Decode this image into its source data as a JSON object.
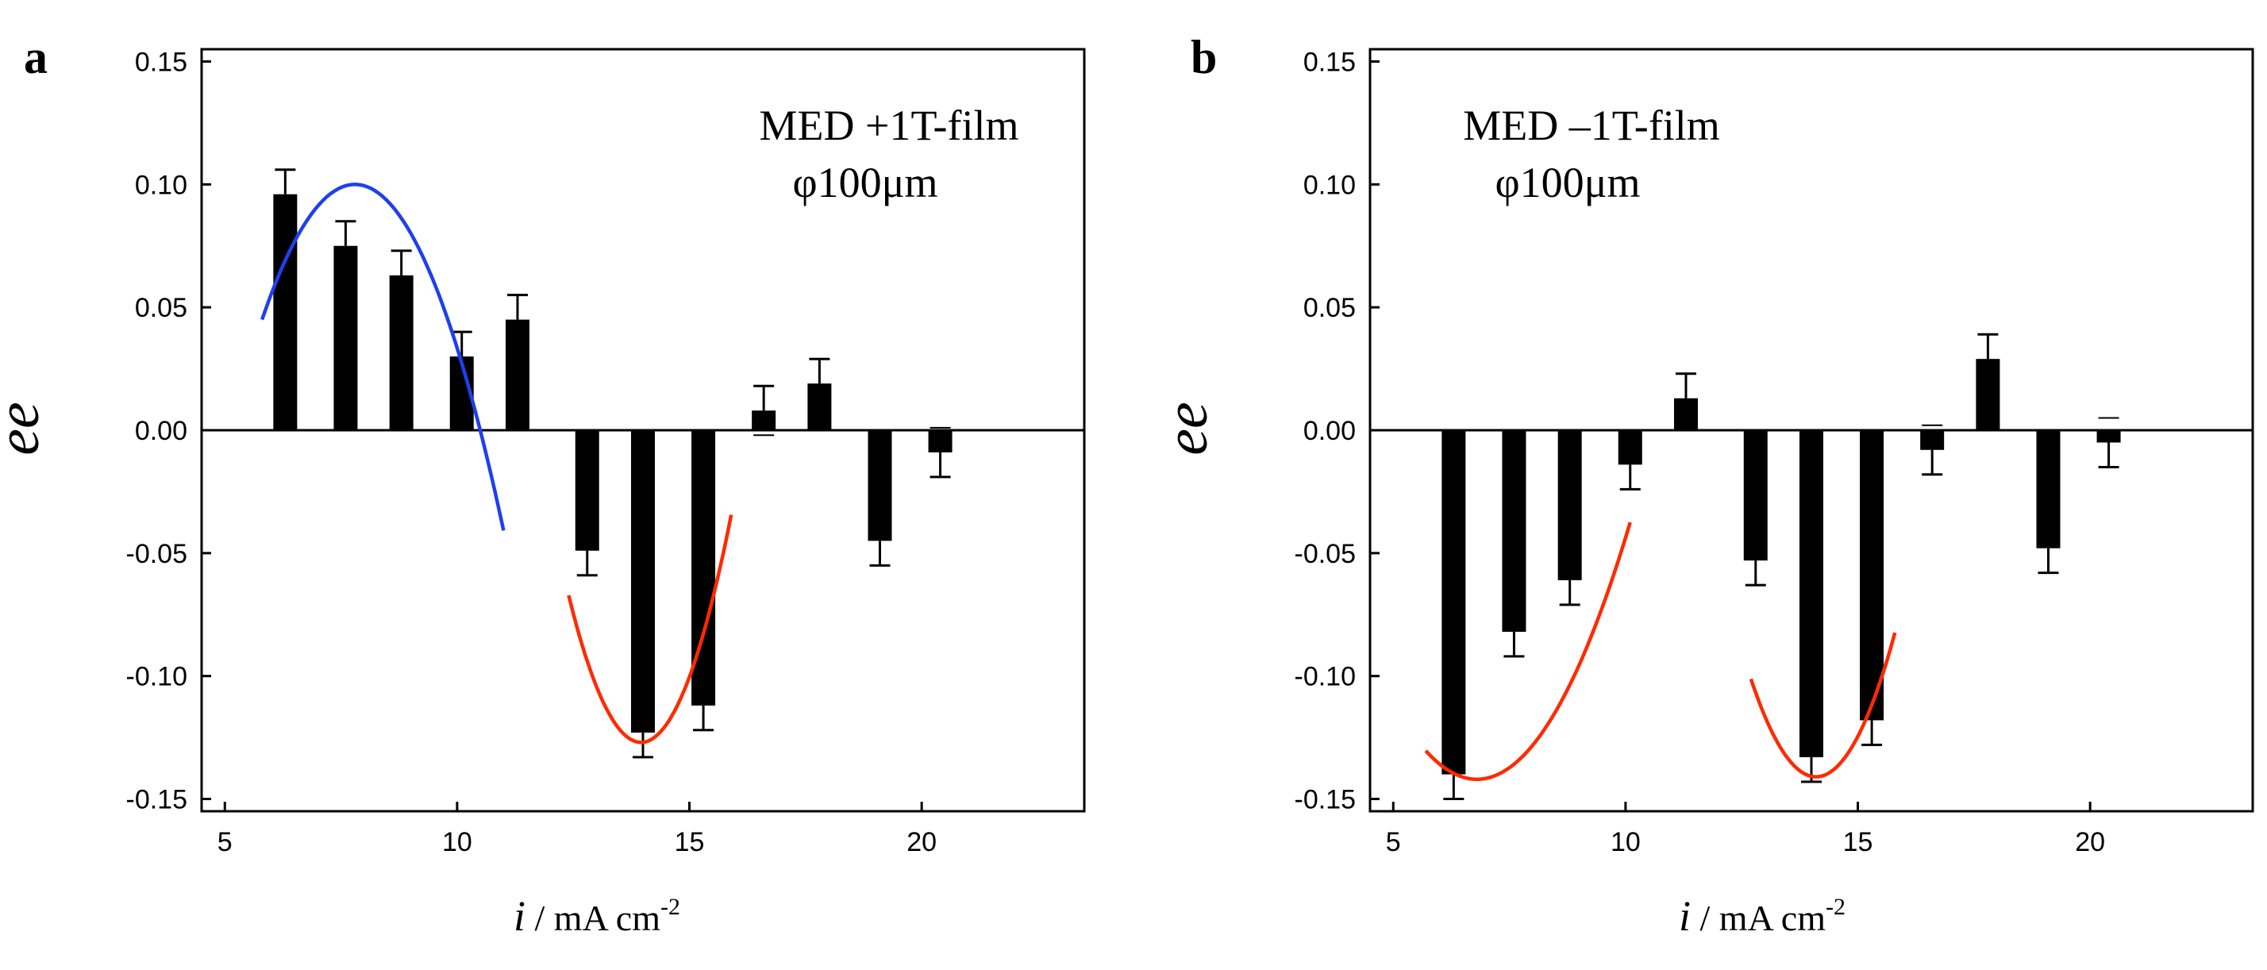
{
  "panels": [
    {
      "letter": "a",
      "annotation_line1": "MED +1T-film",
      "annotation_line2": "φ100μm",
      "chart_data": {
        "type": "bar",
        "title": "MED +1T-film φ100μm",
        "ylabel": "ee",
        "xlabel_italic": "i",
        "xlabel_rest": " / mA cm",
        "xlabel_sup": "-2",
        "xlim": [
          4.5,
          23.5
        ],
        "ylim": [
          -0.155,
          0.155
        ],
        "xticks": [
          5,
          10,
          15,
          20
        ],
        "xtick_labels": [
          "5",
          "10",
          "15",
          "20"
        ],
        "yticks": [
          0.15,
          0.1,
          0.05,
          0.0,
          -0.05,
          -0.1,
          -0.15
        ],
        "ytick_labels": [
          "0.15",
          "0.10",
          "0.05",
          "0.00",
          "-0.05",
          "-0.10",
          "-0.15"
        ],
        "x": [
          6.3,
          7.6,
          8.8,
          10.1,
          11.3,
          12.8,
          14.0,
          15.3,
          16.6,
          17.8,
          19.1,
          20.4
        ],
        "values": [
          0.096,
          0.075,
          0.063,
          0.03,
          0.045,
          -0.049,
          -0.123,
          -0.112,
          0.008,
          0.019,
          -0.045,
          -0.009
        ],
        "error": [
          0.01,
          0.01,
          0.01,
          0.01,
          0.01,
          0.01,
          0.01,
          0.01,
          0.01,
          0.01,
          0.01,
          0.01
        ],
        "fits": [
          {
            "name": "blue fit",
            "color": "#1f3ff0",
            "x0": 5.8,
            "x1": 11.0,
            "vertex_x": 7.8,
            "vertex_y": 0.1,
            "a": -0.01375
          },
          {
            "name": "red fit",
            "color": "#ff2a00",
            "x0": 12.4,
            "x1": 15.9,
            "vertex_x": 13.96,
            "vertex_y": -0.127,
            "a": 0.0246
          }
        ]
      }
    },
    {
      "letter": "b",
      "annotation_line1": "MED –1T-film",
      "annotation_line2": "φ100μm",
      "chart_data": {
        "type": "bar",
        "title": "MED –1T-film φ100μm",
        "ylabel": "ee",
        "xlabel_italic": "i",
        "xlabel_rest": " / mA cm",
        "xlabel_sup": "-2",
        "xlim": [
          4.5,
          23.5
        ],
        "ylim": [
          -0.155,
          0.155
        ],
        "xticks": [
          5,
          10,
          15,
          20
        ],
        "xtick_labels": [
          "5",
          "10",
          "15",
          "20"
        ],
        "yticks": [
          0.15,
          0.1,
          0.05,
          0.0,
          -0.05,
          -0.1,
          -0.15
        ],
        "ytick_labels": [
          "0.15",
          "0.10",
          "0.05",
          "0.00",
          "-0.05",
          "-0.10",
          "-0.15"
        ],
        "x": [
          6.3,
          7.6,
          8.8,
          10.1,
          11.3,
          12.8,
          14.0,
          15.3,
          16.6,
          17.8,
          19.1,
          20.4
        ],
        "values": [
          -0.14,
          -0.082,
          -0.061,
          -0.014,
          0.013,
          -0.053,
          -0.133,
          -0.118,
          -0.008,
          0.029,
          -0.048,
          -0.005
        ],
        "error": [
          0.01,
          0.01,
          0.01,
          0.01,
          0.01,
          0.01,
          0.01,
          0.01,
          0.01,
          0.01,
          0.01,
          0.01
        ],
        "fits": [
          {
            "name": "red fit left",
            "color": "#ff2a00",
            "x0": 5.7,
            "x1": 10.1,
            "vertex_x": 6.8,
            "vertex_y": -0.142,
            "a": 0.0096
          },
          {
            "name": "red fit right",
            "color": "#ff2a00",
            "x0": 12.7,
            "x1": 15.8,
            "vertex_x": 14.1,
            "vertex_y": -0.141,
            "a": 0.0203
          }
        ]
      }
    }
  ]
}
